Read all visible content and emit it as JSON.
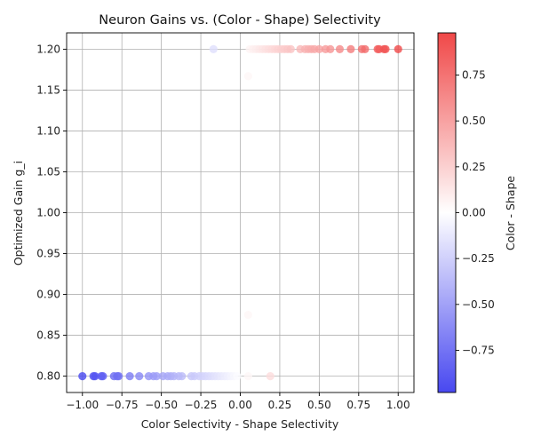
{
  "chart_data": {
    "type": "scatter",
    "title": "Neuron Gains vs. (Color - Shape) Selectivity",
    "xlabel": "Color Selectivity - Shape Selectivity",
    "ylabel": "Optimized Gain g_i",
    "xlim": [
      -1.1,
      1.1
    ],
    "ylim": [
      0.78,
      1.22
    ],
    "xticks": [
      -1.0,
      -0.75,
      -0.5,
      -0.25,
      0.0,
      0.25,
      0.5,
      0.75,
      1.0
    ],
    "xtick_labels": [
      "−1.00",
      "−0.75",
      "−0.50",
      "−0.25",
      "0.00",
      "0.25",
      "0.50",
      "0.75",
      "1.00"
    ],
    "yticks": [
      0.8,
      0.85,
      0.9,
      0.95,
      1.0,
      1.05,
      1.1,
      1.15,
      1.2
    ],
    "ytick_labels": [
      "0.80",
      "0.85",
      "0.90",
      "0.95",
      "1.00",
      "1.05",
      "1.10",
      "1.15",
      "1.20"
    ],
    "grid": true,
    "colormap": "bwr",
    "colorbar": {
      "label": "Color - Shape",
      "range": [
        -0.98,
        0.98
      ],
      "ticks": [
        -0.75,
        -0.5,
        -0.25,
        0.0,
        0.25,
        0.5,
        0.75
      ],
      "tick_labels": [
        "−0.75",
        "−0.50",
        "−0.25",
        "0.00",
        "0.25",
        "0.50",
        "0.75"
      ],
      "low_color": "#4848f0",
      "mid_color": "#ffffff",
      "high_color": "#f04848"
    },
    "points": [
      {
        "x": -1.0,
        "y": 0.8
      },
      {
        "x": -0.93,
        "y": 0.8
      },
      {
        "x": -0.92,
        "y": 0.8
      },
      {
        "x": -0.88,
        "y": 0.8
      },
      {
        "x": -0.87,
        "y": 0.8
      },
      {
        "x": -0.8,
        "y": 0.8
      },
      {
        "x": -0.78,
        "y": 0.8
      },
      {
        "x": -0.77,
        "y": 0.8
      },
      {
        "x": -0.7,
        "y": 0.8
      },
      {
        "x": -0.64,
        "y": 0.8
      },
      {
        "x": -0.58,
        "y": 0.8
      },
      {
        "x": -0.55,
        "y": 0.8
      },
      {
        "x": -0.53,
        "y": 0.8
      },
      {
        "x": -0.49,
        "y": 0.8
      },
      {
        "x": -0.46,
        "y": 0.8
      },
      {
        "x": -0.44,
        "y": 0.8
      },
      {
        "x": -0.42,
        "y": 0.8
      },
      {
        "x": -0.39,
        "y": 0.8
      },
      {
        "x": -0.37,
        "y": 0.8
      },
      {
        "x": -0.31,
        "y": 0.8
      },
      {
        "x": -0.29,
        "y": 0.8
      },
      {
        "x": -0.26,
        "y": 0.8
      },
      {
        "x": -0.24,
        "y": 0.8
      },
      {
        "x": -0.22,
        "y": 0.8
      },
      {
        "x": -0.2,
        "y": 0.8
      },
      {
        "x": -0.18,
        "y": 0.8
      },
      {
        "x": -0.16,
        "y": 0.8
      },
      {
        "x": -0.14,
        "y": 0.8
      },
      {
        "x": -0.12,
        "y": 0.8
      },
      {
        "x": -0.1,
        "y": 0.8
      },
      {
        "x": -0.08,
        "y": 0.8
      },
      {
        "x": -0.06,
        "y": 0.8
      },
      {
        "x": -0.04,
        "y": 0.8
      },
      {
        "x": -0.02,
        "y": 0.8
      },
      {
        "x": 0.05,
        "y": 0.8
      },
      {
        "x": 0.19,
        "y": 0.8
      },
      {
        "x": 0.05,
        "y": 0.875
      },
      {
        "x": 0.05,
        "y": 1.167
      },
      {
        "x": -0.17,
        "y": 1.2
      },
      {
        "x": 0.06,
        "y": 1.2
      },
      {
        "x": 0.08,
        "y": 1.2
      },
      {
        "x": 0.1,
        "y": 1.2
      },
      {
        "x": 0.12,
        "y": 1.2
      },
      {
        "x": 0.14,
        "y": 1.2
      },
      {
        "x": 0.16,
        "y": 1.2
      },
      {
        "x": 0.18,
        "y": 1.2
      },
      {
        "x": 0.2,
        "y": 1.2
      },
      {
        "x": 0.22,
        "y": 1.2
      },
      {
        "x": 0.24,
        "y": 1.2
      },
      {
        "x": 0.26,
        "y": 1.2
      },
      {
        "x": 0.28,
        "y": 1.2
      },
      {
        "x": 0.3,
        "y": 1.2
      },
      {
        "x": 0.32,
        "y": 1.2
      },
      {
        "x": 0.38,
        "y": 1.2
      },
      {
        "x": 0.41,
        "y": 1.2
      },
      {
        "x": 0.43,
        "y": 1.2
      },
      {
        "x": 0.45,
        "y": 1.2
      },
      {
        "x": 0.47,
        "y": 1.2
      },
      {
        "x": 0.5,
        "y": 1.2
      },
      {
        "x": 0.54,
        "y": 1.2
      },
      {
        "x": 0.57,
        "y": 1.2
      },
      {
        "x": 0.63,
        "y": 1.2
      },
      {
        "x": 0.7,
        "y": 1.2
      },
      {
        "x": 0.77,
        "y": 1.2
      },
      {
        "x": 0.79,
        "y": 1.2
      },
      {
        "x": 0.87,
        "y": 1.2
      },
      {
        "x": 0.88,
        "y": 1.2
      },
      {
        "x": 0.91,
        "y": 1.2
      },
      {
        "x": 0.92,
        "y": 1.2
      },
      {
        "x": 1.0,
        "y": 1.2
      }
    ]
  }
}
